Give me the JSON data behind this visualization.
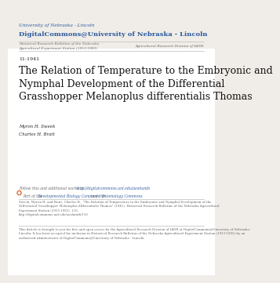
{
  "bg_color": "#ffffff",
  "page_bg": "#f0ede8",
  "header_line1_small": "University of Nebraska - Lincoln",
  "header_line2_large": "DigitalCommons@University of Nebraska - Lincoln",
  "subheader_left_line1": "Historical Research Bulletins of the Nebraska",
  "subheader_left_line2": "Agricultural Experiment Station (1913-1993)",
  "subheader_right": "Agricultural Research Division of IANR",
  "date_label": "11-1941",
  "main_title": "The Relation of Temperature to the Embryonic and\nNymphal Development of the Differential\nGrasshopper Melanoplus differentialis Thomas",
  "author1": "Myron H. Sweek",
  "author2": "Charles H. Bratt",
  "follow_text": "Follow this and additional works at: ",
  "follow_link": "http://digitalcommons.unl.edu/aeshuntb",
  "part_text": "Part of the ",
  "part_link1": "Developmental Biology Commons",
  "part_link2": "Entomology Commons",
  "part_connector": ", and the ",
  "citation_text": "Sweek, Myron H. and Bratt, Charles H., \"The Relation of Temperature to the Embryonic and Nymphal Development of the\nDifferential Grasshopper Melanoplus differentialis Thomas\" (1941). Historical Research Bulletins of the Nebraska Agricultural\nExperiment Station (1913-1993). 116.\nhttp://digitalcommons.unl.edu/aeshuntb/116",
  "article_text": "This Article is brought to you for free and open access by the Agricultural Research Division of IANR at DigitalCommons@University of Nebraska -\nLincoln. It has been accepted for inclusion in Historical Research Bulletins of the Nebraska Agricultural Experiment Station (1913-1993) by an\nauthorized administrator of DigitalCommons@University of Nebraska - Lincoln.",
  "header_color": "#2d5a9e",
  "divider_color": "#bbbbbb",
  "link_color": "#2d5a9e",
  "text_color": "#666666",
  "dark_text": "#222222",
  "title_color": "#111111",
  "globe_color": "#cc4400"
}
